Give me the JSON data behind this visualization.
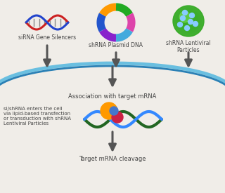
{
  "bg_color": "#f0ede8",
  "labels": {
    "sirna": "siRNA Gene Silencers",
    "shrna_plasmid": "shRNA Plasmid DNA",
    "shrna_lentiviral": "shRNA Lentiviral\nParticles",
    "association": "Association with target mRNA",
    "cleavage": "Target mRNA cleavage",
    "cell_entry": "si/shRNA enters the cell\nvia lipid-based transfection\nor transduction with shRNA\nLentiviral Particles"
  },
  "arrow_color": "#555555",
  "curve_color_outer": "#6abfe0",
  "curve_color_inner": "#2a80b5",
  "text_color": "#444444",
  "dna_strand1": "#cc2222",
  "dna_strand2": "#2244cc",
  "dna_connector": "#888888",
  "plasmid_colors": [
    "#8822cc",
    "#2255cc",
    "#ff9900",
    "#22aa22",
    "#dd44aa",
    "#44aadd"
  ],
  "lentiviral_color": "#33aa22",
  "lentiviral_highlight": "#66cc55",
  "lentiviral_spot": "#88ccff",
  "mrna_color1": "#226622",
  "mrna_color2": "#3388ff",
  "risc_orange": "#ff9900",
  "risc_red": "#cc2244",
  "risc_blue": "#4477cc"
}
